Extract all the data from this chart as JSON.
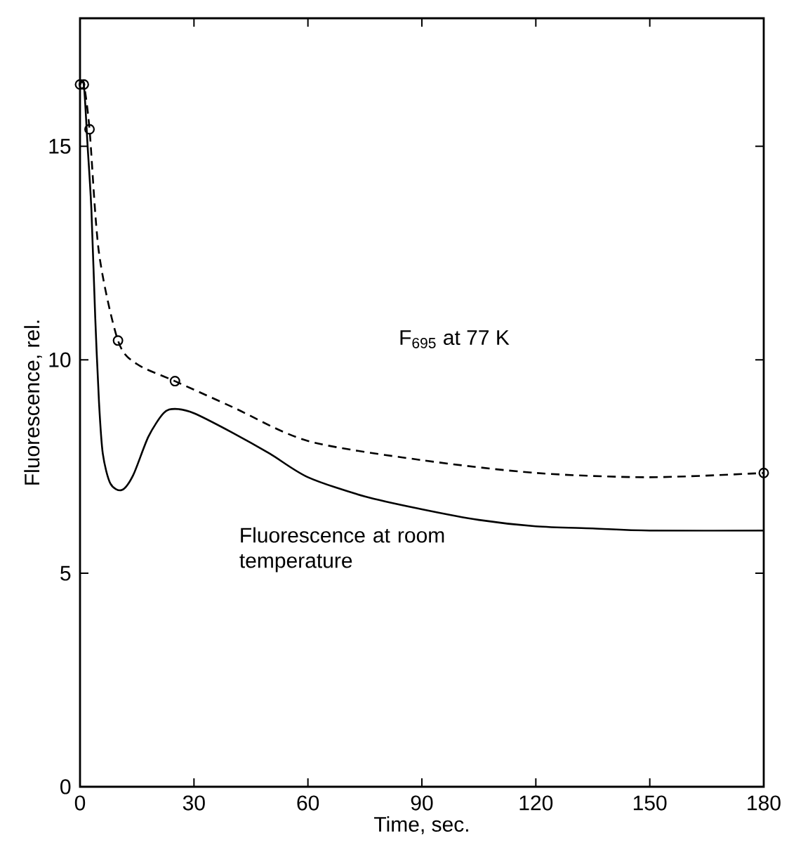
{
  "chart_data": {
    "type": "line",
    "xlabel": "Time, sec.",
    "ylabel": "Fluorescence, rel.",
    "xlim": [
      0,
      180
    ],
    "ylim": [
      0,
      18
    ],
    "xticks": [
      0,
      30,
      60,
      90,
      120,
      150,
      180
    ],
    "yticks": [
      0,
      5,
      10,
      15
    ],
    "annotations": [
      "F$_{695}$ at 77 K",
      "Fluorescence at room temperature"
    ],
    "series": [
      {
        "color": "#000000",
        "line_style": "dashed",
        "marker": "none",
        "x": [
          0,
          1,
          2.5,
          5,
          10,
          15,
          25,
          40,
          60,
          90,
          120,
          150,
          180
        ],
        "values": [
          16.45,
          16.45,
          15.4,
          12.5,
          10.45,
          9.9,
          9.5,
          8.9,
          8.1,
          7.65,
          7.35,
          7.25,
          7.35
        ]
      },
      {
        "type": "scatter",
        "color": "#000000",
        "marker": "circle",
        "x": [
          0,
          1,
          2.5,
          10,
          25,
          180
        ],
        "values": [
          16.45,
          16.45,
          15.4,
          10.45,
          9.5,
          7.35
        ]
      },
      {
        "color": "#000000",
        "line_style": "solid",
        "marker": "none",
        "x": [
          0,
          1,
          2,
          3,
          4,
          5,
          6,
          8,
          11,
          14,
          18,
          22,
          25,
          30,
          40,
          50,
          60,
          75,
          90,
          105,
          120,
          135,
          150,
          180
        ],
        "values": [
          16.45,
          16.45,
          15.0,
          13.5,
          11.0,
          9.0,
          7.8,
          7.1,
          6.95,
          7.3,
          8.2,
          8.75,
          8.85,
          8.75,
          8.3,
          7.8,
          7.25,
          6.8,
          6.5,
          6.25,
          6.1,
          6.05,
          6.0,
          6.0
        ]
      }
    ]
  }
}
